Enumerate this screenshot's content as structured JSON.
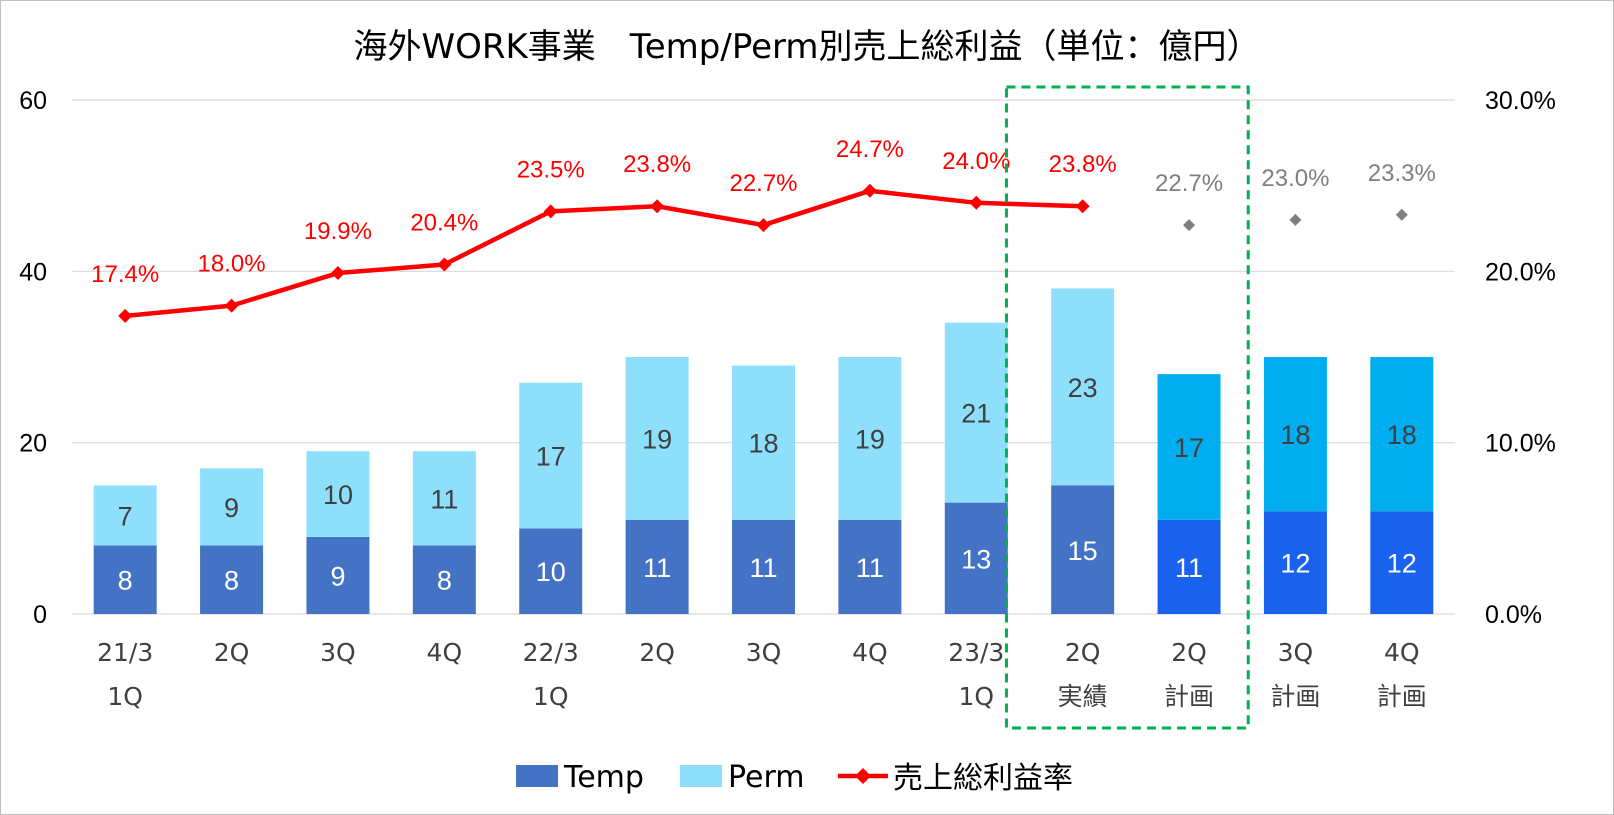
{
  "chart_data": {
    "type": "bar",
    "title": "海外WORK事業　Temp/Perm別売上総利益（単位：億円）",
    "categories": [
      [
        "21/3",
        "1Q"
      ],
      [
        "2Q"
      ],
      [
        "3Q"
      ],
      [
        "4Q"
      ],
      [
        "22/3",
        "1Q"
      ],
      [
        "2Q"
      ],
      [
        "3Q"
      ],
      [
        "4Q"
      ],
      [
        "23/3",
        "1Q"
      ],
      [
        "2Q",
        "実績"
      ],
      [
        "2Q",
        "計画"
      ],
      [
        "3Q",
        "計画"
      ],
      [
        "4Q",
        "計画"
      ]
    ],
    "ylim": [
      0,
      60
    ],
    "y_ticks": [
      "0",
      "20",
      "40",
      "60"
    ],
    "y2lim": [
      0,
      30
    ],
    "y2_ticks": [
      "0.0%",
      "10.0%",
      "20.0%",
      "30.0%"
    ],
    "grid": true,
    "legend_position": "bottom",
    "series": [
      {
        "name": "Temp",
        "type": "bar",
        "stack": "gp",
        "values": [
          8,
          8,
          9,
          8,
          10,
          11,
          11,
          11,
          13,
          15,
          11,
          12,
          12
        ],
        "labels": [
          "8",
          "8",
          "9",
          "8",
          "10",
          "11",
          "11",
          "11",
          "13",
          "15",
          "11",
          "12",
          "12"
        ],
        "color": "#4472C4",
        "plan_color": "#1A62EE"
      },
      {
        "name": "Perm",
        "type": "bar",
        "stack": "gp",
        "values": [
          7,
          9,
          10,
          11,
          17,
          19,
          18,
          19,
          21,
          23,
          17,
          18,
          18
        ],
        "labels": [
          "7",
          "9",
          "10",
          "11",
          "17",
          "19",
          "18",
          "19",
          "21",
          "23",
          "17",
          "18",
          "18"
        ],
        "color": "#8EDFFC",
        "plan_color": "#00AEEF"
      },
      {
        "name": "売上総利益率",
        "type": "line",
        "axis": "secondary",
        "values": [
          17.4,
          18.0,
          19.9,
          20.4,
          23.5,
          23.8,
          22.7,
          24.7,
          24.0,
          23.8,
          22.7,
          23.0,
          23.3
        ],
        "labels": [
          "17.4%",
          "18.0%",
          "19.9%",
          "20.4%",
          "23.5%",
          "23.8%",
          "22.7%",
          "24.7%",
          "24.0%",
          "23.8%",
          "22.7%",
          "23.0%",
          "23.3%"
        ],
        "color": "#FF0000",
        "plan_color": "#7F7F7F"
      }
    ],
    "plan_start_index": 10,
    "highlight_box": {
      "from_index": 9,
      "to_index": 10,
      "color": "#00B050",
      "style": "dashed"
    }
  }
}
